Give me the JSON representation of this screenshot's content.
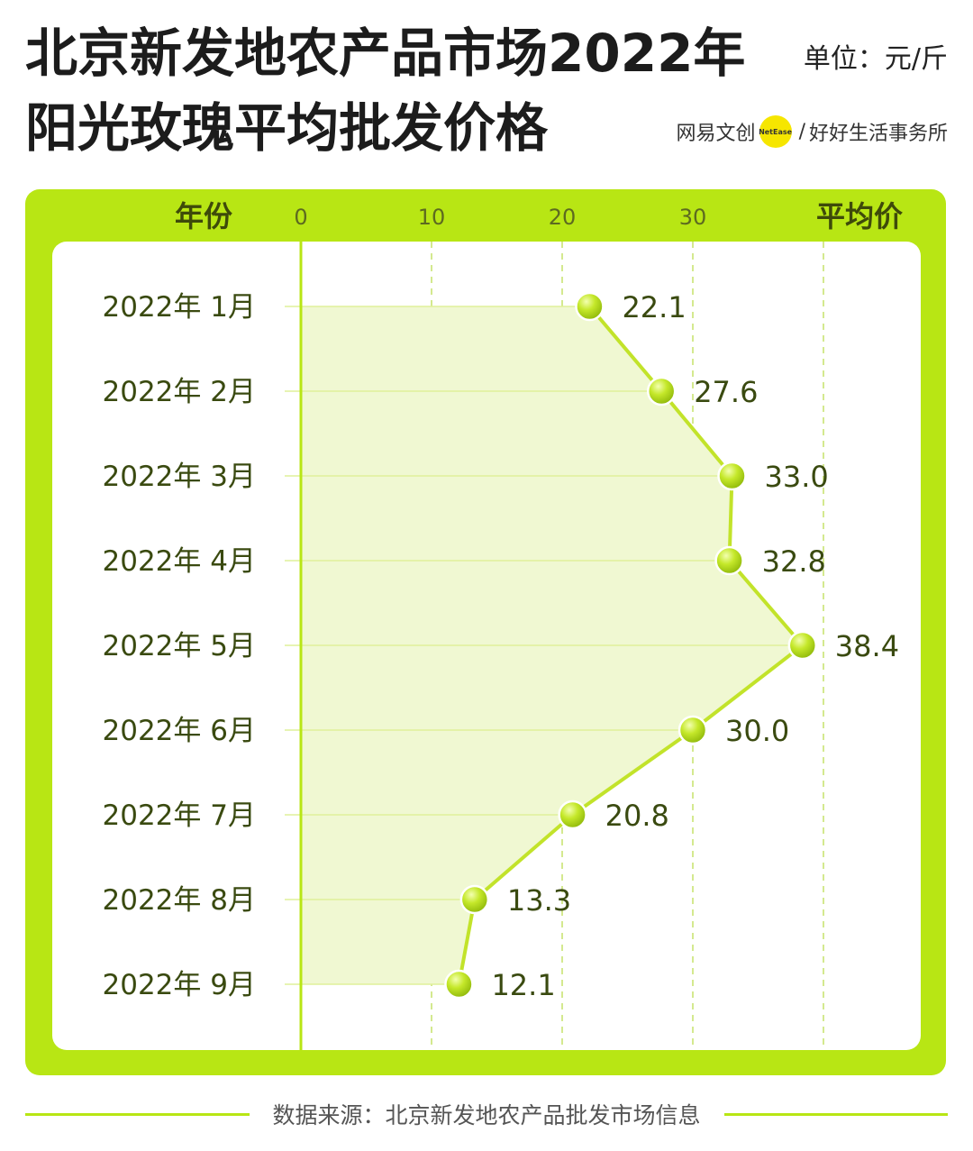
{
  "header": {
    "title_line1": "北京新发地农产品市场2022年",
    "title_line2": "阳光玫瑰平均批发价格",
    "unit": "单位：元/斤",
    "brand": {
      "name": "网易文创",
      "logo_text": "NetEase",
      "separator": "/",
      "partner": "好好生活事务所"
    }
  },
  "chart_data": {
    "type": "line",
    "orientation": "horizontal",
    "category_header": "年份",
    "value_header": "平均价",
    "categories": [
      "2022年 1月",
      "2022年 2月",
      "2022年 3月",
      "2022年 4月",
      "2022年 5月",
      "2022年 6月",
      "2022年 7月",
      "2022年 8月",
      "2022年 9月"
    ],
    "values": [
      22.1,
      27.6,
      33.0,
      32.8,
      38.4,
      30.0,
      20.8,
      13.3,
      12.1
    ],
    "value_labels": [
      "22.1",
      "27.6",
      "33.0",
      "32.8",
      "38.4",
      "30.0",
      "20.8",
      "13.3",
      "12.1"
    ],
    "ticks": [
      "0",
      "10",
      "20",
      "30"
    ],
    "tick_values": [
      0,
      10,
      20,
      30,
      40
    ],
    "xlim": [
      0,
      40
    ],
    "grid": true,
    "colors": {
      "frame": "#b8e614",
      "line": "#c2e32a",
      "point": "#bde01c",
      "area": "#f0f8d2",
      "text": "#3a4a10"
    }
  },
  "footer": {
    "source": "数据来源：北京新发地农产品批发市场信息"
  }
}
